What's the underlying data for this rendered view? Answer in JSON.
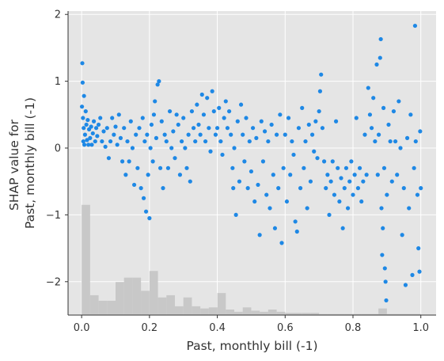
{
  "chart_data": {
    "type": "scatter",
    "title": "",
    "xlabel": "Past, monthly bill (-1)",
    "ylabel_lines": [
      "SHAP value for",
      "Past, monthly bill (-1)"
    ],
    "xlim": [
      -0.04,
      1.045
    ],
    "ylim": [
      -2.5,
      2.05
    ],
    "xticks": [
      0.0,
      0.2,
      0.4,
      0.6,
      0.8,
      1.0
    ],
    "xtick_labels": [
      "0.0",
      "0.2",
      "0.4",
      "0.6",
      "0.8",
      "1.0"
    ],
    "yticks": [
      -2,
      -1,
      0,
      1,
      2
    ],
    "ytick_labels": [
      "−2",
      "−1",
      "0",
      "1",
      "2"
    ],
    "grid": true,
    "point_color": "#1e88e5",
    "background_color": "#e5e5e5",
    "histogram_color": "#c8c8c8",
    "histogram": {
      "bin_edges_start": 0.0,
      "bin_width": 0.025,
      "values": [
        1.0,
        0.18,
        0.13,
        0.13,
        0.3,
        0.34,
        0.34,
        0.22,
        0.4,
        0.16,
        0.18,
        0.08,
        0.16,
        0.08,
        0.06,
        0.07,
        0.2,
        0.05,
        0.03,
        0.07,
        0.04,
        0.03,
        0.05,
        0.03,
        0.02,
        0.02,
        0.02,
        0.02,
        0.01,
        0.01,
        0.01,
        0.01,
        0.01,
        0.01,
        0.01,
        0.06,
        0.01,
        0.01,
        0.01,
        0.01
      ],
      "max_height_in_y_units": 1.65
    },
    "points": [
      [
        0.001,
        0.62
      ],
      [
        0.002,
        1.27
      ],
      [
        0.003,
        0.98
      ],
      [
        0.004,
        0.45
      ],
      [
        0.005,
        0.1
      ],
      [
        0.006,
        0.3
      ],
      [
        0.007,
        0.78
      ],
      [
        0.008,
        0.05
      ],
      [
        0.01,
        0.2
      ],
      [
        0.012,
        0.55
      ],
      [
        0.014,
        0.35
      ],
      [
        0.016,
        0.12
      ],
      [
        0.018,
        0.42
      ],
      [
        0.02,
        0.05
      ],
      [
        0.022,
        0.28
      ],
      [
        0.025,
        0.15
      ],
      [
        0.028,
        0.32
      ],
      [
        0.03,
        0.05
      ],
      [
        0.033,
        0.22
      ],
      [
        0.036,
        0.4
      ],
      [
        0.04,
        0.1
      ],
      [
        0.043,
        0.3
      ],
      [
        0.046,
        0.18
      ],
      [
        0.05,
        0.35
      ],
      [
        0.055,
        0.45
      ],
      [
        0.06,
        0.1
      ],
      [
        0.065,
        0.25
      ],
      [
        0.07,
        0.02
      ],
      [
        0.075,
        0.3
      ],
      [
        0.08,
        -0.15
      ],
      [
        0.085,
        0.1
      ],
      [
        0.09,
        0.45
      ],
      [
        0.095,
        0.2
      ],
      [
        0.1,
        0.32
      ],
      [
        0.105,
        0.05
      ],
      [
        0.11,
        0.5
      ],
      [
        0.115,
        0.15
      ],
      [
        0.12,
        -0.2
      ],
      [
        0.125,
        0.3
      ],
      [
        0.13,
        -0.4
      ],
      [
        0.135,
        0.1
      ],
      [
        0.14,
        -0.2
      ],
      [
        0.145,
        0.4
      ],
      [
        0.15,
        0.0
      ],
      [
        0.155,
        -0.55
      ],
      [
        0.16,
        0.2
      ],
      [
        0.165,
        -0.3
      ],
      [
        0.17,
        0.3
      ],
      [
        0.175,
        -0.6
      ],
      [
        0.18,
        0.45
      ],
      [
        0.183,
        -0.75
      ],
      [
        0.186,
        0.1
      ],
      [
        0.19,
        -0.95
      ],
      [
        0.193,
        0.2
      ],
      [
        0.196,
        -0.4
      ],
      [
        0.2,
        -1.05
      ],
      [
        0.203,
        0.0
      ],
      [
        0.206,
        0.35
      ],
      [
        0.21,
        -0.2
      ],
      [
        0.213,
        0.5
      ],
      [
        0.216,
        0.7
      ],
      [
        0.22,
        0.15
      ],
      [
        0.224,
        0.95
      ],
      [
        0.228,
        1.0
      ],
      [
        0.232,
        -0.3
      ],
      [
        0.236,
        0.4
      ],
      [
        0.24,
        -0.6
      ],
      [
        0.245,
        0.2
      ],
      [
        0.25,
        0.1
      ],
      [
        0.255,
        -0.3
      ],
      [
        0.26,
        0.55
      ],
      [
        0.265,
        0.0
      ],
      [
        0.27,
        0.25
      ],
      [
        0.275,
        -0.15
      ],
      [
        0.28,
        0.5
      ],
      [
        0.285,
        0.35
      ],
      [
        0.29,
        -0.4
      ],
      [
        0.295,
        0.1
      ],
      [
        0.3,
        0.45
      ],
      [
        0.305,
        0.0
      ],
      [
        0.31,
        -0.3
      ],
      [
        0.315,
        0.2
      ],
      [
        0.32,
        -0.5
      ],
      [
        0.325,
        0.55
      ],
      [
        0.33,
        0.3
      ],
      [
        0.335,
        0.1
      ],
      [
        0.34,
        0.65
      ],
      [
        0.345,
        0.35
      ],
      [
        0.35,
        0.2
      ],
      [
        0.355,
        0.8
      ],
      [
        0.36,
        0.5
      ],
      [
        0.365,
        0.1
      ],
      [
        0.37,
        0.75
      ],
      [
        0.375,
        0.3
      ],
      [
        0.38,
        -0.05
      ],
      [
        0.385,
        0.85
      ],
      [
        0.39,
        0.55
      ],
      [
        0.395,
        0.2
      ],
      [
        0.4,
        0.3
      ],
      [
        0.405,
        0.6
      ],
      [
        0.41,
        0.1
      ],
      [
        0.415,
        -0.1
      ],
      [
        0.42,
        0.45
      ],
      [
        0.425,
        0.7
      ],
      [
        0.43,
        0.3
      ],
      [
        0.435,
        0.55
      ],
      [
        0.44,
        0.2
      ],
      [
        0.445,
        -0.3
      ],
      [
        0.447,
        -0.6
      ],
      [
        0.45,
        0.0
      ],
      [
        0.455,
        -1.0
      ],
      [
        0.46,
        0.4
      ],
      [
        0.465,
        -0.5
      ],
      [
        0.47,
        0.65
      ],
      [
        0.475,
        0.2
      ],
      [
        0.48,
        -0.2
      ],
      [
        0.485,
        0.45
      ],
      [
        0.49,
        -0.6
      ],
      [
        0.495,
        0.1
      ],
      [
        0.5,
        -0.35
      ],
      [
        0.505,
        0.3
      ],
      [
        0.51,
        -0.8
      ],
      [
        0.515,
        0.15
      ],
      [
        0.52,
        -0.55
      ],
      [
        0.525,
        -1.3
      ],
      [
        0.53,
        0.4
      ],
      [
        0.535,
        -0.2
      ],
      [
        0.54,
        0.25
      ],
      [
        0.545,
        -0.7
      ],
      [
        0.55,
        0.1
      ],
      [
        0.555,
        -0.9
      ],
      [
        0.56,
        0.35
      ],
      [
        0.565,
        -0.4
      ],
      [
        0.57,
        -1.2
      ],
      [
        0.575,
        0.2
      ],
      [
        0.58,
        -0.6
      ],
      [
        0.585,
        0.5
      ],
      [
        0.59,
        -1.42
      ],
      [
        0.595,
        -0.3
      ],
      [
        0.6,
        0.2
      ],
      [
        0.605,
        -0.8
      ],
      [
        0.61,
        0.45
      ],
      [
        0.615,
        -0.4
      ],
      [
        0.62,
        0.1
      ],
      [
        0.625,
        -0.1
      ],
      [
        0.63,
        -1.1
      ],
      [
        0.635,
        -1.25
      ],
      [
        0.64,
        0.3
      ],
      [
        0.645,
        -0.6
      ],
      [
        0.65,
        0.6
      ],
      [
        0.655,
        -0.3
      ],
      [
        0.66,
        0.1
      ],
      [
        0.665,
        -0.9
      ],
      [
        0.67,
        0.35
      ],
      [
        0.675,
        -0.5
      ],
      [
        0.68,
        0.2
      ],
      [
        0.685,
        -0.05
      ],
      [
        0.69,
        0.4
      ],
      [
        0.695,
        -0.15
      ],
      [
        0.7,
        0.55
      ],
      [
        0.703,
        0.85
      ],
      [
        0.706,
        1.1
      ],
      [
        0.71,
        0.3
      ],
      [
        0.715,
        -0.2
      ],
      [
        0.72,
        -0.6
      ],
      [
        0.725,
        -0.4
      ],
      [
        0.73,
        -1.0
      ],
      [
        0.735,
        -0.5
      ],
      [
        0.74,
        -0.2
      ],
      [
        0.745,
        -0.7
      ],
      [
        0.75,
        0.4
      ],
      [
        0.755,
        -0.3
      ],
      [
        0.76,
        -0.8
      ],
      [
        0.765,
        -0.45
      ],
      [
        0.77,
        -1.2
      ],
      [
        0.775,
        -0.6
      ],
      [
        0.78,
        -0.3
      ],
      [
        0.785,
        -0.9
      ],
      [
        0.79,
        -0.5
      ],
      [
        0.795,
        -0.2
      ],
      [
        0.8,
        -0.7
      ],
      [
        0.805,
        -0.4
      ],
      [
        0.81,
        0.45
      ],
      [
        0.815,
        -0.6
      ],
      [
        0.82,
        -0.3
      ],
      [
        0.825,
        -0.8
      ],
      [
        0.83,
        -0.5
      ],
      [
        0.835,
        0.2
      ],
      [
        0.84,
        -0.4
      ],
      [
        0.845,
        0.9
      ],
      [
        0.85,
        0.5
      ],
      [
        0.855,
        0.3
      ],
      [
        0.86,
        0.75
      ],
      [
        0.865,
        0.1
      ],
      [
        0.87,
        1.25
      ],
      [
        0.873,
        -0.4
      ],
      [
        0.876,
        0.2
      ],
      [
        0.88,
        1.35
      ],
      [
        0.882,
        1.63
      ],
      [
        0.884,
        -0.9
      ],
      [
        0.886,
        -1.6
      ],
      [
        0.888,
        -1.2
      ],
      [
        0.89,
        0.6
      ],
      [
        0.892,
        -0.3
      ],
      [
        0.894,
        -1.8
      ],
      [
        0.896,
        -2.0
      ],
      [
        0.898,
        -2.28
      ],
      [
        0.9,
        -0.7
      ],
      [
        0.905,
        0.35
      ],
      [
        0.91,
        0.1
      ],
      [
        0.915,
        -0.5
      ],
      [
        0.92,
        0.55
      ],
      [
        0.925,
        0.1
      ],
      [
        0.93,
        -0.4
      ],
      [
        0.935,
        0.7
      ],
      [
        0.94,
        0.0
      ],
      [
        0.945,
        -1.3
      ],
      [
        0.95,
        -0.6
      ],
      [
        0.955,
        -2.05
      ],
      [
        0.96,
        0.15
      ],
      [
        0.965,
        -0.9
      ],
      [
        0.97,
        0.5
      ],
      [
        0.975,
        -1.9
      ],
      [
        0.98,
        -0.3
      ],
      [
        0.983,
        1.83
      ],
      [
        0.985,
        0.1
      ],
      [
        0.99,
        -0.7
      ],
      [
        0.993,
        -1.5
      ],
      [
        0.996,
        -1.85
      ],
      [
        0.998,
        0.25
      ],
      [
        1.0,
        -0.6
      ]
    ]
  }
}
